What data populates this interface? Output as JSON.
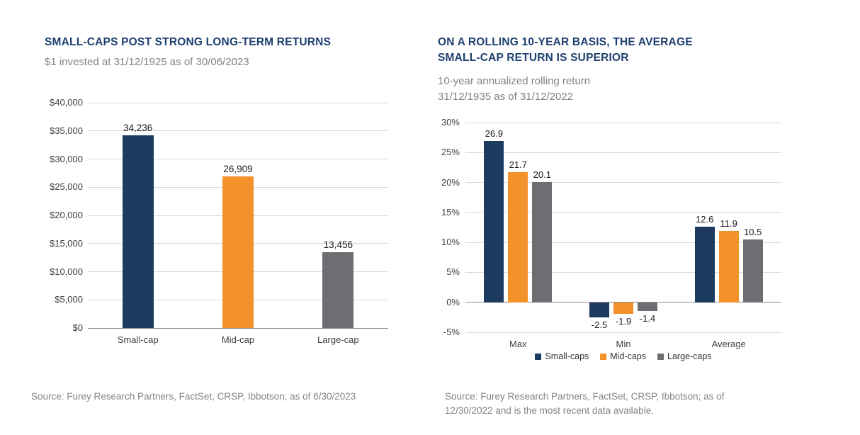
{
  "colors": {
    "title_navy": "#1e4070",
    "subtitle_gray": "#808285",
    "bar_navy": "#1d3a5f",
    "bar_orange": "#f3912b",
    "bar_gray": "#6d6e71",
    "gridline": "#d9d9d9",
    "axis_line": "#8c8c8c",
    "tick_text": "#404040",
    "value_text": "#1a1a1a",
    "source_gray": "#828487"
  },
  "chart_data": [
    {
      "type": "bar",
      "title_lines": [
        "SMALL-CAPS POST STRONG LONG-TERM RETURNS"
      ],
      "subtitle_lines": [
        "$1 invested at 31/12/1925 as of 30/06/2023"
      ],
      "categories": [
        "Small-cap",
        "Mid-cap",
        "Large-cap"
      ],
      "values": [
        34236,
        26909,
        13456
      ],
      "value_labels": [
        "34,236",
        "26,909",
        "13,456"
      ],
      "bar_colors": [
        "#1d3a5f",
        "#f3912b",
        "#6d6e71"
      ],
      "xlabel": "",
      "ylabel": "",
      "ylim": [
        0,
        40000
      ],
      "grid": true,
      "legend_position": "none",
      "yticks": [
        {
          "v": 0,
          "label": "$0"
        },
        {
          "v": 5000,
          "label": "$5,000"
        },
        {
          "v": 10000,
          "label": "$10,000"
        },
        {
          "v": 15000,
          "label": "$15,000"
        },
        {
          "v": 20000,
          "label": "$20,000"
        },
        {
          "v": 25000,
          "label": "$25,000"
        },
        {
          "v": 30000,
          "label": "$30,000"
        },
        {
          "v": 35000,
          "label": "$35,000"
        },
        {
          "v": 40000,
          "label": "$40,000"
        }
      ],
      "source_lines": [
        "Source: Furey Research Partners, FactSet, CRSP, Ibbotson; as of 6/30/2023"
      ]
    },
    {
      "type": "bar",
      "title_lines": [
        "ON A ROLLING 10-YEAR BASIS, THE AVERAGE",
        "SMALL-CAP RETURN IS SUPERIOR"
      ],
      "subtitle_lines": [
        "10-year annualized rolling return",
        "31/12/1935 as of 31/12/2022"
      ],
      "categories": [
        "Max",
        "Min",
        "Average"
      ],
      "series": [
        {
          "name": "Small-caps",
          "color": "#1d3a5f",
          "values": [
            26.9,
            -2.5,
            12.6
          ],
          "value_labels": [
            "26.9",
            "-2.5",
            "12.6"
          ]
        },
        {
          "name": "Mid-caps",
          "color": "#f3912b",
          "values": [
            21.7,
            -1.9,
            11.9
          ],
          "value_labels": [
            "21.7",
            "-1.9",
            "11.9"
          ]
        },
        {
          "name": "Large-caps",
          "color": "#6d6e71",
          "values": [
            20.1,
            -1.4,
            10.5
          ],
          "value_labels": [
            "20.1",
            "-1.4",
            "10.5"
          ]
        }
      ],
      "xlabel": "",
      "ylabel": "",
      "ylim": [
        -5,
        30
      ],
      "grid": true,
      "legend_position": "bottom",
      "yticks": [
        {
          "v": -5,
          "label": "-5%"
        },
        {
          "v": 0,
          "label": "0%"
        },
        {
          "v": 5,
          "label": "5%"
        },
        {
          "v": 10,
          "label": "10%"
        },
        {
          "v": 15,
          "label": "15%"
        },
        {
          "v": 20,
          "label": "20%"
        },
        {
          "v": 25,
          "label": "25%"
        },
        {
          "v": 30,
          "label": "30%"
        }
      ],
      "source_lines": [
        "Source: Furey Research Partners, FactSet, CRSP, Ibbotson; as of",
        "12/30/2022 and is the most recent data available."
      ]
    }
  ]
}
